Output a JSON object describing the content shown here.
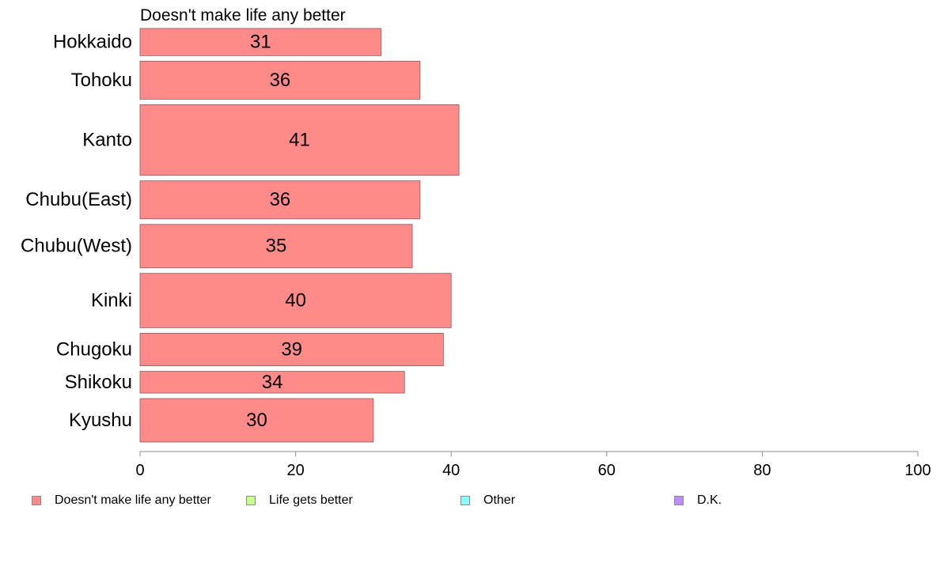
{
  "chart_data": {
    "type": "bar",
    "orientation": "horizontal",
    "title": "Doesn't make life any better",
    "categories": [
      "Hokkaido",
      "Tohoku",
      "Kanto",
      "Chubu(East)",
      "Chubu(West)",
      "Kinki",
      "Chugoku",
      "Shikoku",
      "Kyushu"
    ],
    "category_weights": [
      5,
      7,
      13,
      7,
      8,
      10,
      6,
      4,
      8
    ],
    "series": [
      {
        "name": "Doesn't make life any better",
        "values": [
          31,
          36,
          41,
          36,
          35,
          40,
          39,
          34,
          30
        ],
        "labels": [
          "31",
          "36",
          "41",
          "36",
          "35",
          "40",
          "39",
          "34",
          "30"
        ]
      }
    ],
    "xlim": [
      0,
      100
    ],
    "xticks": [
      0,
      20,
      40,
      60,
      80,
      100
    ],
    "xtick_labels": [
      "0",
      "20",
      "40",
      "60",
      "80",
      "100"
    ],
    "grid": false,
    "legend_position": "bottom",
    "bar_color": "#ff8a8a",
    "bar_stroke": "#8a5a5a"
  },
  "legend": {
    "items": [
      {
        "label": "Doesn't make life any better",
        "color": "#ff8a8a"
      },
      {
        "label": "Life gets better",
        "color": "#c8ff8a"
      },
      {
        "label": "Other",
        "color": "#8afcfc"
      },
      {
        "label": "D.K.",
        "color": "#bf8afc"
      }
    ]
  }
}
